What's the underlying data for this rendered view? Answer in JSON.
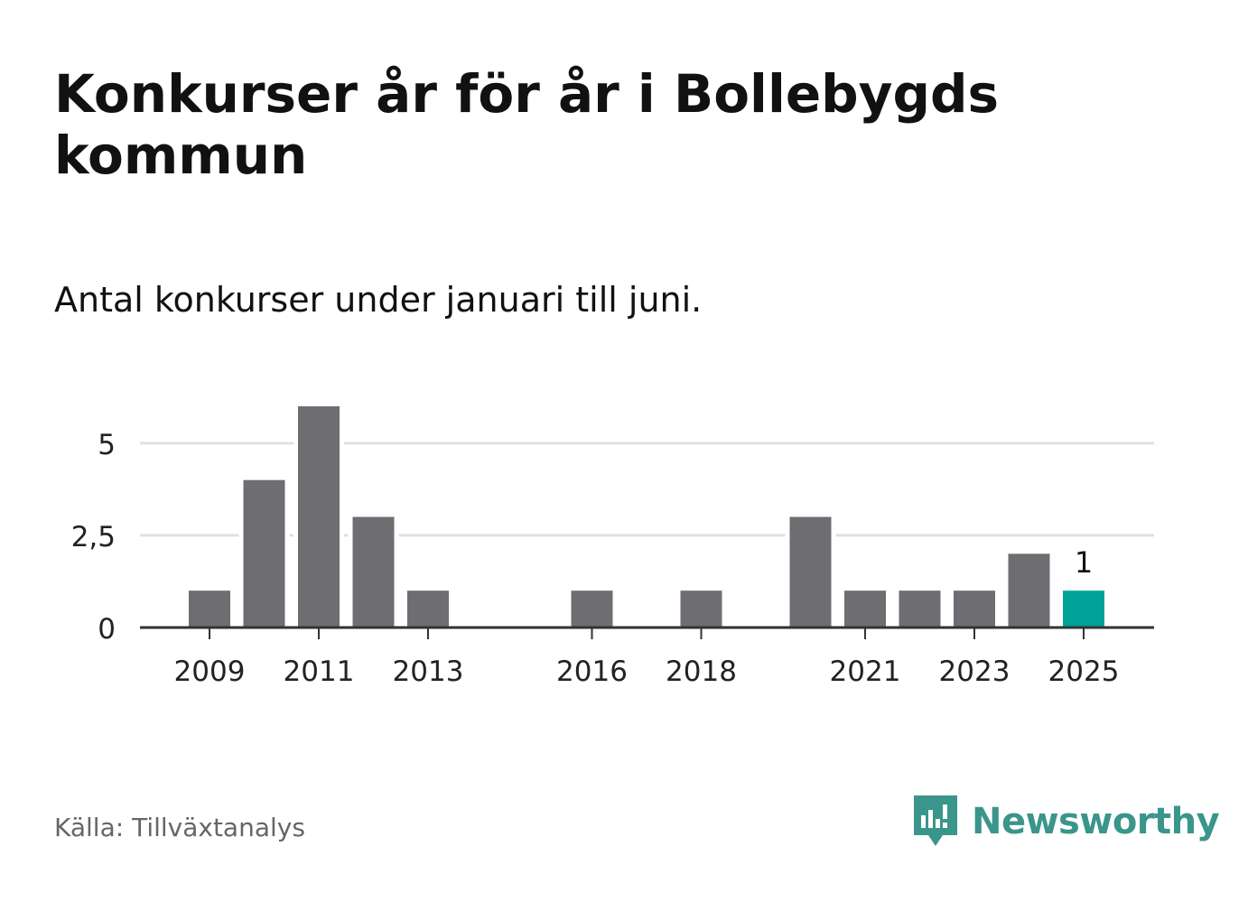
{
  "title": "Konkurser år för år i Bollebygds kommun",
  "subtitle": "Antal konkurser under januari till juni.",
  "source": "Källa: Tillväxtanalys",
  "brand": {
    "name": "Newsworthy",
    "icon": "newsworthy-logo-icon",
    "color": "#3a958a"
  },
  "colors": {
    "bar": "#6e6d72",
    "highlight": "#00a398",
    "grid": "#e0e0e0",
    "axis": "#333333"
  },
  "chart_data": {
    "type": "bar",
    "x": [
      2009,
      2010,
      2011,
      2012,
      2013,
      2014,
      2015,
      2016,
      2017,
      2018,
      2019,
      2020,
      2021,
      2022,
      2023,
      2024,
      2025
    ],
    "values": [
      1,
      4,
      6,
      3,
      1,
      0,
      0,
      1,
      0,
      1,
      0,
      3,
      1,
      1,
      1,
      2,
      1
    ],
    "x_tick_labels": [
      "2009",
      "2011",
      "2013",
      "2016",
      "2018",
      "2021",
      "2023",
      "2025"
    ],
    "y_ticks": [
      {
        "value": 0,
        "label": "0"
      },
      {
        "value": 2.5,
        "label": "2,5"
      },
      {
        "value": 5,
        "label": "5"
      }
    ],
    "ylim": [
      0,
      6
    ],
    "highlight": {
      "x": 2025,
      "label": "1"
    },
    "grid": true
  }
}
